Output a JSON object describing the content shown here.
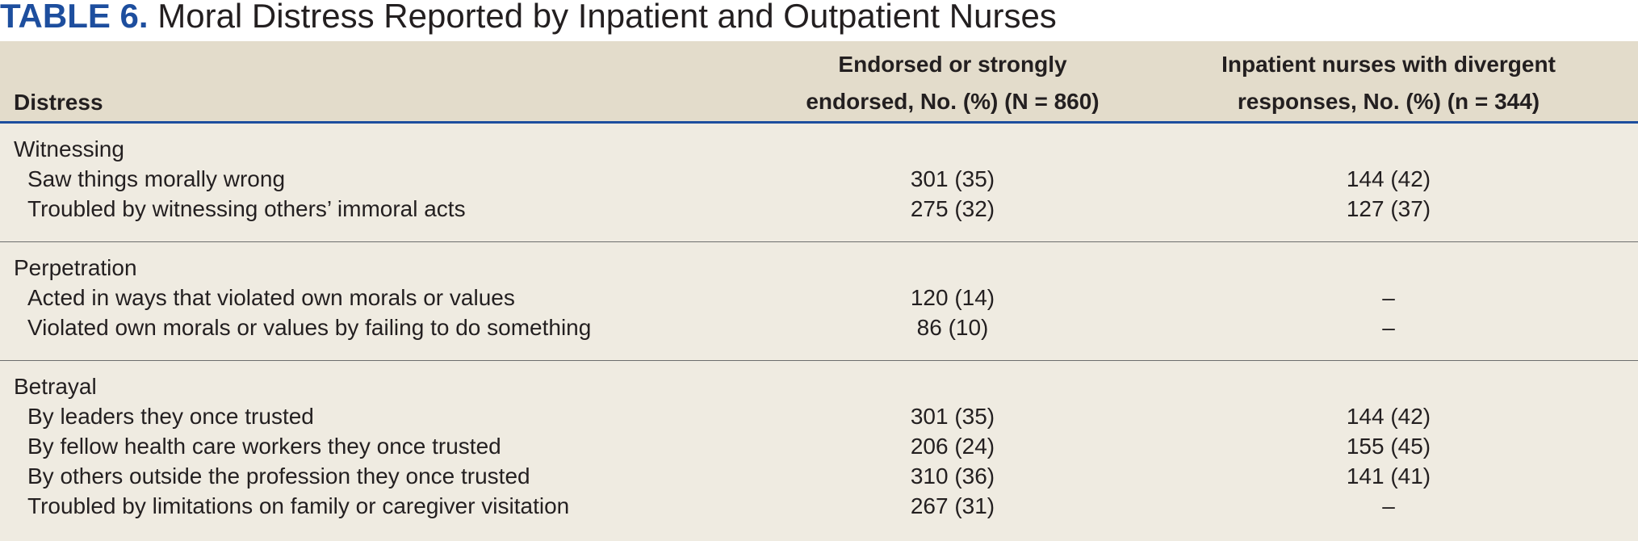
{
  "title": {
    "label": "TABLE 6.",
    "text": " Moral Distress Reported by Inpatient and Outpatient Nurses"
  },
  "header": {
    "distress": "Distress",
    "endorsed": "Endorsed or strongly\nendorsed, No. (%) (N = 860)",
    "divergent": "Inpatient nurses with divergent\nresponses, No. (%) (n = 344)"
  },
  "groups": [
    {
      "heading": "Witnessing",
      "rows": [
        {
          "name": "Saw things morally wrong",
          "endorsed": "301 (35)",
          "divergent": "144 (42)"
        },
        {
          "name": "Troubled by witnessing others’ immoral acts",
          "endorsed": "275 (32)",
          "divergent": "127 (37)"
        }
      ]
    },
    {
      "heading": "Perpetration",
      "rows": [
        {
          "name": "Acted in ways that violated own morals or values",
          "endorsed": "120 (14)",
          "divergent": "–"
        },
        {
          "name": "Violated own morals or values by failing to do something",
          "endorsed": "86 (10)",
          "divergent": "–"
        }
      ]
    },
    {
      "heading": "Betrayal",
      "rows": [
        {
          "name": "By leaders they once trusted",
          "endorsed": "301 (35)",
          "divergent": "144 (42)"
        },
        {
          "name": "By fellow health care workers they once trusted",
          "endorsed": "206 (24)",
          "divergent": "155 (45)"
        },
        {
          "name": "By others outside the profession they once trusted",
          "endorsed": "310 (36)",
          "divergent": "141 (41)"
        },
        {
          "name": "Troubled by limitations on family or caregiver visitation",
          "endorsed": "267 (31)",
          "divergent": "–"
        }
      ]
    }
  ]
}
